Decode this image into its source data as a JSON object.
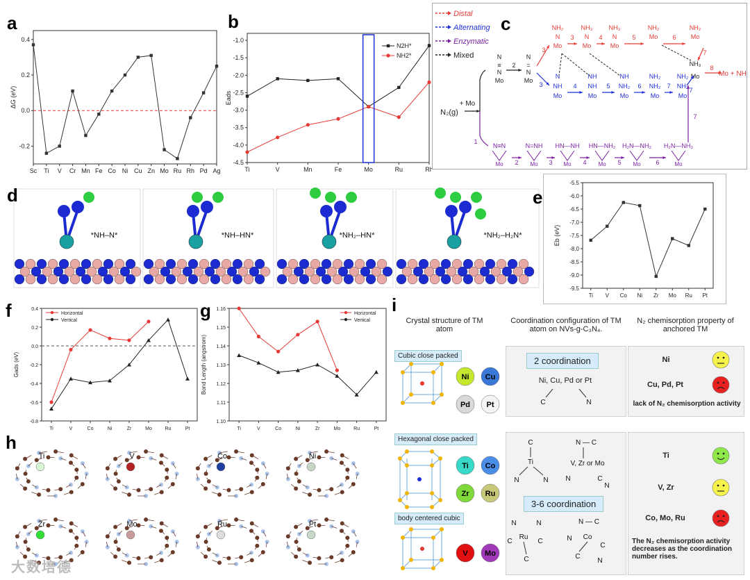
{
  "labels": {
    "a": "a",
    "b": "b",
    "c": "c",
    "d": "d",
    "e": "e",
    "f": "f",
    "g": "g",
    "h": "h",
    "i": "i"
  },
  "colors": {
    "red": "#e53935",
    "blue": "#1e2fd6",
    "purple": "#6a1b9a",
    "black": "#222222",
    "nitrogen": "#1c2ad1",
    "boron": "#e8a9a5",
    "mo": "#1aa0a0",
    "h": "#2ecc40"
  },
  "panel_a": {
    "chart_data": {
      "type": "line",
      "categories": [
        "Sc",
        "Ti",
        "V",
        "Cr",
        "Mn",
        "Fe",
        "Co",
        "Ni",
        "Cu",
        "Zn",
        "Mo",
        "Ru",
        "Rh",
        "Pd",
        "Ag"
      ],
      "series": [
        {
          "values": [
            0.37,
            -0.24,
            -0.2,
            0.11,
            -0.14,
            -0.02,
            0.11,
            0.2,
            0.3,
            0.31,
            -0.22,
            -0.27,
            -0.04,
            0.1,
            0.25
          ]
        }
      ],
      "ylabel": "ΔG (eV)",
      "ylim": [
        -0.3,
        0.45
      ],
      "yticks": [
        -0.2,
        0.0,
        0.2,
        0.4
      ],
      "reference_line": 0.0
    }
  },
  "panel_b": {
    "chart_data": {
      "type": "line",
      "categories": [
        "Ti",
        "V",
        "Mn",
        "Fe",
        "Mo",
        "Ru",
        "Rh"
      ],
      "series": [
        {
          "name": "N2H*",
          "color": "#222222",
          "values": [
            -2.6,
            -2.1,
            -2.15,
            -2.1,
            -2.9,
            -2.35,
            -1.15
          ]
        },
        {
          "name": "NH2*",
          "color": "#e53935",
          "values": [
            -4.2,
            -3.78,
            -3.42,
            -3.25,
            -2.9,
            -3.2,
            -2.2
          ]
        }
      ],
      "ylabel": "Eads",
      "ylim": [
        -4.5,
        -0.8
      ],
      "yticks": [
        -4.5,
        -4.0,
        -3.5,
        -3.0,
        -2.5,
        -2.0,
        -1.5,
        -1.0
      ],
      "highlight_category": "Mo",
      "legend": "top-right"
    }
  },
  "panel_c": {
    "legend": [
      "Distal",
      "Alternating",
      "Enzymatic",
      "Mixed"
    ],
    "start": "N₂(g)",
    "plus_mo": "+ Mo",
    "product": "Mo + NH₃",
    "distal_species": [
      "NH₂ N Mo",
      "NH₃ N Mo",
      "NH₃ N Mo",
      "NH₂ Mo",
      "NH₂ Mo"
    ],
    "alternating_species": [
      "N NH Mo",
      "NH NH Mo",
      "NH NH₂ Mo",
      "NH₂ NH₂ Mo",
      "NH₂ NH₂ Mo"
    ],
    "enzymatic_species": [
      "N≡N",
      "N=NH",
      "HN—NH",
      "HN—NH₂",
      "H₂N—NH₂",
      "H₂N—NH₃"
    ],
    "first": "N≡N Mo",
    "second": "N=N Mo",
    "mo": "Mo",
    "nh3": "NH₃",
    "steps": [
      "1",
      "2",
      "3",
      "4",
      "5",
      "6",
      "7",
      "8"
    ]
  },
  "panel_d": {
    "species": [
      "*NH–N*",
      "*NH–HN*",
      "*NH₂–HN*",
      "*NH₂–H₂N*"
    ]
  },
  "panel_e": {
    "chart_data": {
      "type": "line",
      "categories": [
        "Ti",
        "V",
        "Co",
        "Ni",
        "Zr",
        "Mo",
        "Ru",
        "Pt"
      ],
      "series": [
        {
          "values": [
            -7.68,
            -7.15,
            -6.25,
            -6.37,
            -9.05,
            -7.62,
            -7.88,
            -6.5
          ]
        }
      ],
      "ylabel": "Eb (eV)",
      "ylim": [
        -9.5,
        -5.5
      ],
      "yticks": [
        -9.5,
        -9.0,
        -8.5,
        -8.0,
        -7.5,
        -7.0,
        -6.5,
        -6.0,
        -5.5
      ]
    }
  },
  "panel_f": {
    "chart_data": {
      "type": "line",
      "categories": [
        "Ti",
        "V",
        "Co",
        "Ni",
        "Zr",
        "Mo",
        "Ru",
        "Pt"
      ],
      "series": [
        {
          "name": "Horizontal",
          "color": "#e53935",
          "values": [
            -0.6,
            -0.04,
            0.17,
            0.08,
            0.06,
            0.26,
            null,
            null
          ]
        },
        {
          "name": "Vertical",
          "color": "#222222",
          "values": [
            -0.67,
            -0.35,
            -0.39,
            -0.37,
            -0.2,
            0.06,
            0.28,
            -0.35
          ]
        }
      ],
      "ylabel": "Gads (eV)",
      "ylim": [
        -0.8,
        0.4
      ],
      "yticks": [
        -0.8,
        -0.6,
        -0.4,
        -0.2,
        0.0,
        0.2,
        0.4
      ],
      "reference_line": 0.0,
      "legend": "top-left"
    }
  },
  "panel_g": {
    "chart_data": {
      "type": "line",
      "categories": [
        "Ti",
        "V",
        "Co",
        "Ni",
        "Zr",
        "Mo",
        "Ru",
        "Pt"
      ],
      "series": [
        {
          "name": "Horizontal",
          "color": "#e53935",
          "values": [
            1.16,
            1.145,
            1.137,
            1.146,
            1.153,
            1.127,
            null,
            null
          ]
        },
        {
          "name": "Vertical",
          "color": "#222222",
          "values": [
            1.135,
            1.131,
            1.126,
            1.127,
            1.13,
            1.124,
            1.114,
            1.126
          ]
        }
      ],
      "ylabel": "Bond Length (angstrom)",
      "ylim": [
        1.1,
        1.16
      ],
      "yticks": [
        1.1,
        1.11,
        1.12,
        1.13,
        1.14,
        1.15,
        1.16
      ],
      "legend": "top-right"
    }
  },
  "panel_h": {
    "atoms": [
      "Ti",
      "V",
      "Co",
      "Ni",
      "Zr",
      "Mo",
      "Ru",
      "Pt"
    ]
  },
  "panel_i": {
    "header1": "Crystal structure of TM atom",
    "header2": "Coordination configuration of TM atom on NVs-g-C₃N₄.",
    "header3": "N₂ chemisorption property of anchored TM",
    "ccp": "Cubic close packed",
    "hcp": "Hexagonal close packed",
    "bcc": "body centered cubic",
    "ccp_atoms": [
      "Ni",
      "Cu",
      "Pd",
      "Pt"
    ],
    "hcp_atoms": [
      "Ti",
      "Co",
      "Zr",
      "Ru"
    ],
    "bcc_atoms": [
      "V",
      "Mo"
    ],
    "coord2": "2 coordination",
    "coord2_formula": "Ni, Cu, Pd or Pt",
    "coord36": "3-6 coordination",
    "ti": "Ti",
    "vzr": "V, Zr or Mo",
    "ru": "Ru",
    "co": "Co",
    "c": "C",
    "n": "N",
    "prop_ni": "Ni",
    "prop_cupdpt": "Cu, Pd, Pt",
    "lack": "lack of N₂ chemisorption activity",
    "prop_ti": "Ti",
    "prop_vzr": "V, Zr",
    "prop_comoru": "Co, Mo, Ru",
    "decrease": "The N₂ chemisorption activity decreases as the coordination number rises."
  },
  "watermark": "大数培德"
}
